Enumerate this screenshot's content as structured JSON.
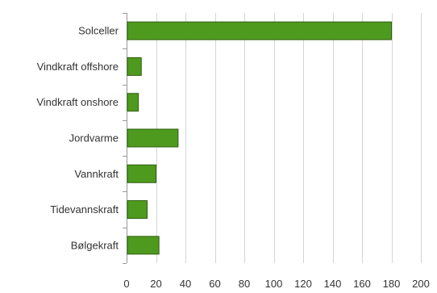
{
  "chart_data": {
    "type": "bar",
    "orientation": "horizontal",
    "categories": [
      "Solceller",
      "Vindkraft offshore",
      "Vindkraft onshore",
      "Jordvarme",
      "Vannkraft",
      "Tidevannskraft",
      "Bølgekraft"
    ],
    "values": [
      180,
      10,
      8,
      35,
      20,
      14,
      22
    ],
    "xlim": [
      0,
      200
    ],
    "xticks": [
      0,
      20,
      40,
      60,
      80,
      100,
      120,
      140,
      160,
      180,
      200
    ],
    "grid": "vertical",
    "legend": "none",
    "title": "",
    "xlabel": "",
    "ylabel": ""
  },
  "colors": {
    "bar_fill": "#4e9a1e",
    "bar_stroke": "#2f5f10",
    "grid": "#d4d4d4",
    "axis": "#999999"
  }
}
